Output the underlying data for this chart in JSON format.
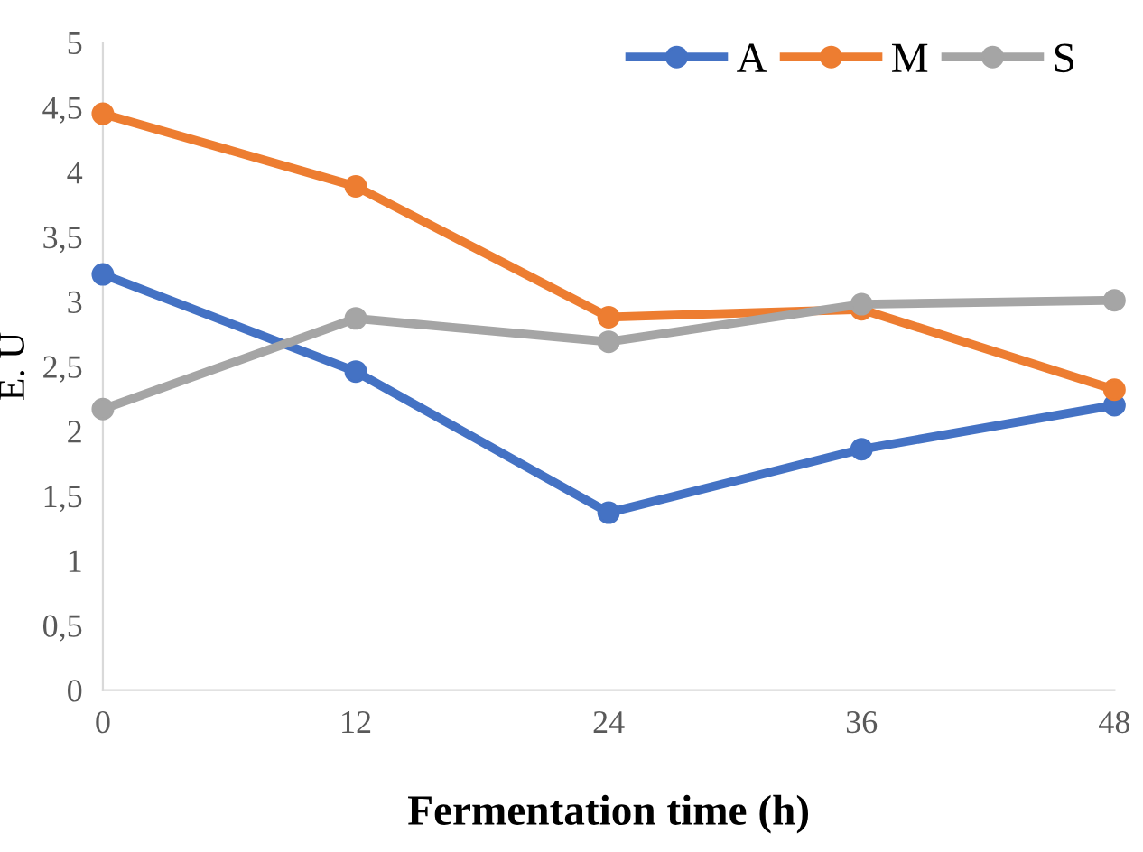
{
  "chart_data": {
    "type": "line",
    "xlabel": "Fermentation time (h)",
    "ylabel": "E. U",
    "x": [
      0,
      12,
      24,
      36,
      48
    ],
    "series": [
      {
        "name": "A",
        "color": "#4472c4",
        "values": [
          3.21,
          2.46,
          1.37,
          1.86,
          2.2
        ]
      },
      {
        "name": "M",
        "color": "#ed7d31",
        "values": [
          4.45,
          3.89,
          2.88,
          2.94,
          2.32
        ]
      },
      {
        "name": "S",
        "color": "#a5a5a5",
        "values": [
          2.17,
          2.87,
          2.69,
          2.98,
          3.01
        ]
      }
    ],
    "xlim": [
      0,
      48
    ],
    "xticks": [
      0,
      12,
      24,
      36,
      48
    ],
    "ylim": [
      0,
      5
    ],
    "yticks": [
      0,
      {
        "value": 0.5,
        "label": "0,5"
      },
      1,
      {
        "value": 1.5,
        "label": "1,5"
      },
      2,
      {
        "value": 2.5,
        "label": "2,5"
      },
      3,
      {
        "value": 3.5,
        "label": "3,5"
      },
      4,
      {
        "value": 4.5,
        "label": "4,5"
      },
      5
    ],
    "grid": false,
    "legend": "top right",
    "marker": "circle",
    "line_style": "solid"
  }
}
